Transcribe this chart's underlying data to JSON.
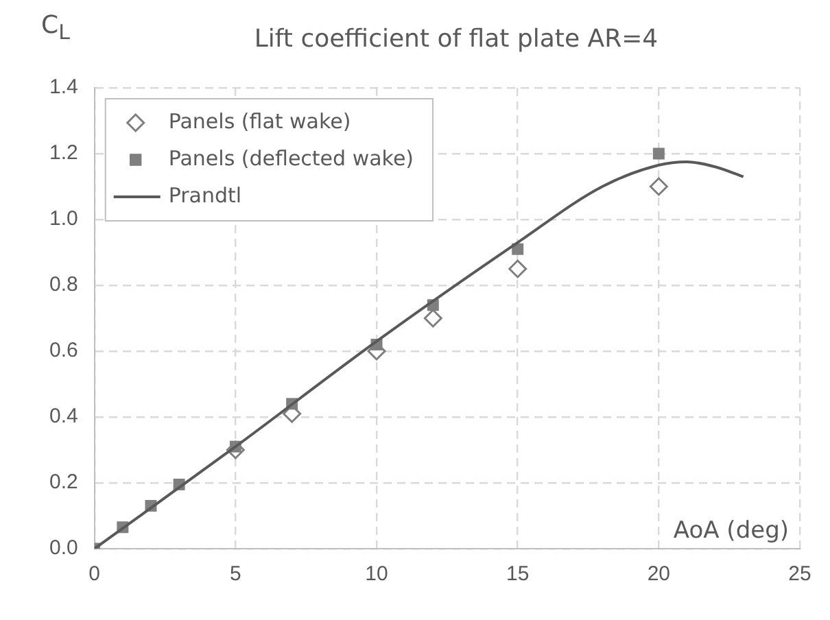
{
  "chart_data": {
    "type": "scatter",
    "title": "Lift coefficient of flat plate AR=4",
    "xlabel": "AoA (deg)",
    "ylabel": "C$_{L}$",
    "xlim": [
      0,
      25
    ],
    "xticks": [
      0,
      5,
      10,
      15,
      20,
      25
    ],
    "ylim": [
      0,
      1.4
    ],
    "yticks": [
      {
        "value": 0,
        "label": "0.0"
      },
      0.2,
      0.4,
      0.6,
      0.8,
      {
        "value": 1,
        "label": "1.0"
      },
      1.2,
      1.4
    ],
    "grid": true,
    "legend": "top left",
    "series": [
      {
        "name": "Panels (flat wake)",
        "marker": "diamond",
        "color": "#7f7f7f",
        "x": [
          5,
          7,
          10,
          12,
          15,
          20
        ],
        "values": [
          0.3,
          0.41,
          0.6,
          0.7,
          0.85,
          1.1
        ]
      },
      {
        "name": "Panels (deflected wake)",
        "marker": "square",
        "color": "#7f7f7f",
        "x": [
          0,
          1,
          2,
          3,
          5,
          7,
          10,
          12,
          15,
          20
        ],
        "values": [
          0,
          0.065,
          0.13,
          0.195,
          0.31,
          0.44,
          0.62,
          0.74,
          0.91,
          1.2
        ]
      },
      {
        "name": "Prandtl",
        "type": "line",
        "marker": "none",
        "line_style": "solid",
        "color": "#595959",
        "x": [
          0,
          5,
          10,
          15,
          18,
          20,
          21,
          22,
          23
        ],
        "values": [
          0,
          0.31,
          0.63,
          0.93,
          1.1,
          1.165,
          1.175,
          1.16,
          1.13
        ]
      }
    ]
  }
}
